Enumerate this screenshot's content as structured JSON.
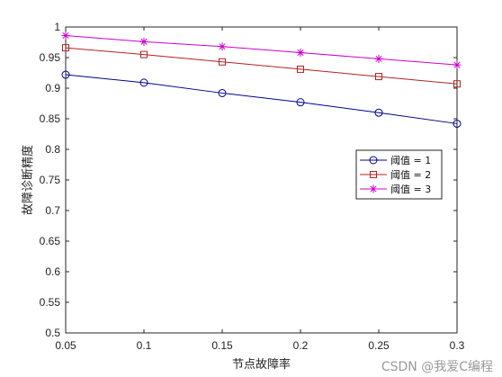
{
  "chart_data": {
    "type": "line",
    "xlabel": "节点故障率",
    "ylabel": "故障诊断精度",
    "xlim": [
      0.05,
      0.3
    ],
    "ylim": [
      0.5,
      1
    ],
    "xticks": [
      "0.05",
      "0.1",
      "0.15",
      "0.2",
      "0.25",
      "0.3"
    ],
    "yticks": [
      "0.5",
      "0.55",
      "0.6",
      "0.65",
      "0.7",
      "0.75",
      "0.8",
      "0.85",
      "0.9",
      "0.95",
      "1"
    ],
    "x": [
      0.05,
      0.1,
      0.15,
      0.2,
      0.25,
      0.3
    ],
    "grid": false,
    "legend_position": "right-middle",
    "series": [
      {
        "name": "阈值 = 1",
        "marker": "circle",
        "color": "#00008b",
        "values": [
          0.922,
          0.909,
          0.892,
          0.877,
          0.86,
          0.842
        ]
      },
      {
        "name": "阈值 = 2",
        "marker": "square",
        "color": "#b22222",
        "values": [
          0.966,
          0.955,
          0.943,
          0.931,
          0.919,
          0.907
        ]
      },
      {
        "name": "阈值 = 3",
        "marker": "star",
        "color": "#cc00cc",
        "values": [
          0.986,
          0.976,
          0.968,
          0.958,
          0.948,
          0.938
        ]
      }
    ]
  },
  "watermark": "CSDN @我爱C编程"
}
